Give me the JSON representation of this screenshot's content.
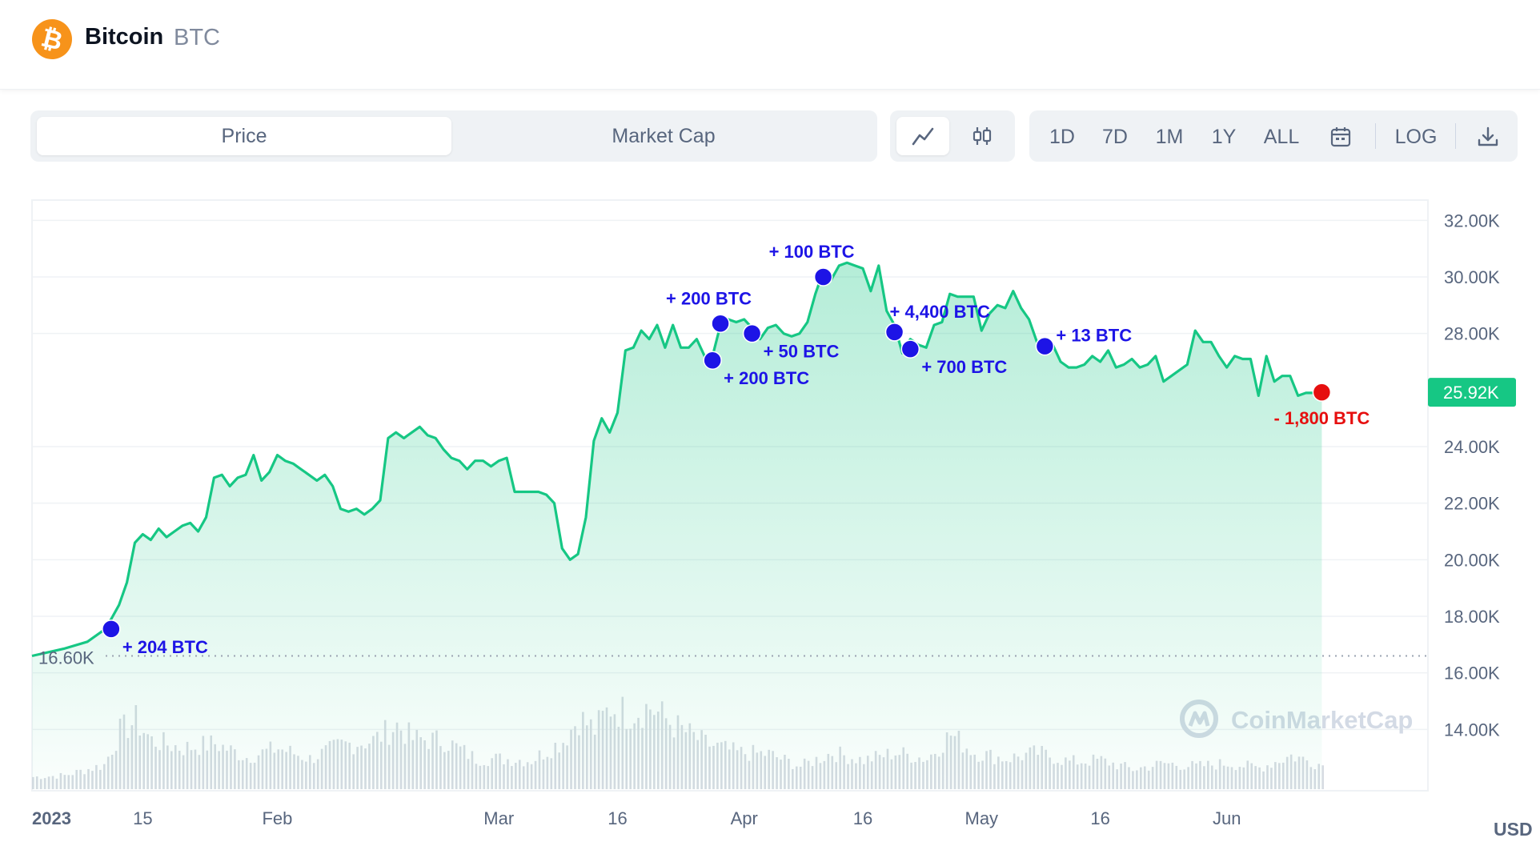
{
  "header": {
    "coin_name": "Bitcoin",
    "coin_symbol": "BTC",
    "logo_glyph": "₿",
    "logo_color": "#f7931a"
  },
  "toolbar": {
    "metric_tabs": [
      {
        "label": "Price",
        "active": true
      },
      {
        "label": "Market Cap",
        "active": false
      }
    ],
    "chart_type_buttons": [
      {
        "icon": "line-chart-icon",
        "active": true
      },
      {
        "icon": "candlestick-icon",
        "active": false
      }
    ],
    "timeframes": [
      "1D",
      "7D",
      "1M",
      "1Y",
      "ALL"
    ],
    "calendar_icon": "calendar-icon",
    "log_label": "LOG",
    "download_icon": "download-icon"
  },
  "chart_data": {
    "type": "area",
    "currency_label": "USD",
    "y_ticks": [
      "32.00K",
      "30.00K",
      "28.00K",
      "24.00K",
      "22.00K",
      "20.00K",
      "18.00K",
      "16.00K",
      "14.00K"
    ],
    "y_tick_values": [
      32000,
      30000,
      28000,
      24000,
      22000,
      20000,
      18000,
      16000,
      14000
    ],
    "ylim": [
      12000,
      33000
    ],
    "x_ticks": [
      {
        "label": "2023",
        "date": "2023-01-01",
        "bold": true
      },
      {
        "label": "15",
        "date": "2023-01-15"
      },
      {
        "label": "Feb",
        "date": "2023-02-01"
      },
      {
        "label": "Mar",
        "date": "2023-03-01"
      },
      {
        "label": "16",
        "date": "2023-03-16"
      },
      {
        "label": "Apr",
        "date": "2023-04-01"
      },
      {
        "label": "16",
        "date": "2023-04-16"
      },
      {
        "label": "May",
        "date": "2023-05-01"
      },
      {
        "label": "16",
        "date": "2023-05-16"
      },
      {
        "label": "Jun",
        "date": "2023-06-01"
      }
    ],
    "xlim": [
      "2023-01-01",
      "2023-06-25"
    ],
    "start_price": {
      "label": "16.60K",
      "value": 16600
    },
    "current_price": {
      "label": "25.92K",
      "value": 25920
    },
    "series": [
      {
        "color": "#16c784",
        "points": [
          [
            "2023-01-01",
            16600
          ],
          [
            "2023-01-05",
            16850
          ],
          [
            "2023-01-08",
            17100
          ],
          [
            "2023-01-10",
            17500
          ],
          [
            "2023-01-11",
            17900
          ],
          [
            "2023-01-12",
            18400
          ],
          [
            "2023-01-13",
            19200
          ],
          [
            "2023-01-14",
            20600
          ],
          [
            "2023-01-15",
            20900
          ],
          [
            "2023-01-16",
            20700
          ],
          [
            "2023-01-17",
            21100
          ],
          [
            "2023-01-18",
            20800
          ],
          [
            "2023-01-19",
            21000
          ],
          [
            "2023-01-20",
            21200
          ],
          [
            "2023-01-21",
            21300
          ],
          [
            "2023-01-22",
            21000
          ],
          [
            "2023-01-23",
            21500
          ],
          [
            "2023-01-24",
            22900
          ],
          [
            "2023-01-25",
            23000
          ],
          [
            "2023-01-26",
            22600
          ],
          [
            "2023-01-27",
            22900
          ],
          [
            "2023-01-28",
            23000
          ],
          [
            "2023-01-29",
            23700
          ],
          [
            "2023-01-30",
            22800
          ],
          [
            "2023-01-31",
            23100
          ],
          [
            "2023-02-01",
            23700
          ],
          [
            "2023-02-02",
            23500
          ],
          [
            "2023-02-03",
            23400
          ],
          [
            "2023-02-04",
            23200
          ],
          [
            "2023-02-05",
            23000
          ],
          [
            "2023-02-06",
            22800
          ],
          [
            "2023-02-07",
            23000
          ],
          [
            "2023-02-08",
            22600
          ],
          [
            "2023-02-09",
            21800
          ],
          [
            "2023-02-10",
            21700
          ],
          [
            "2023-02-11",
            21800
          ],
          [
            "2023-02-12",
            21600
          ],
          [
            "2023-02-13",
            21800
          ],
          [
            "2023-02-14",
            22100
          ],
          [
            "2023-02-15",
            24300
          ],
          [
            "2023-02-16",
            24500
          ],
          [
            "2023-02-17",
            24300
          ],
          [
            "2023-02-18",
            24500
          ],
          [
            "2023-02-19",
            24700
          ],
          [
            "2023-02-20",
            24400
          ],
          [
            "2023-02-21",
            24300
          ],
          [
            "2023-02-22",
            23900
          ],
          [
            "2023-02-23",
            23600
          ],
          [
            "2023-02-24",
            23500
          ],
          [
            "2023-02-25",
            23200
          ],
          [
            "2023-02-26",
            23500
          ],
          [
            "2023-02-27",
            23500
          ],
          [
            "2023-02-28",
            23300
          ],
          [
            "2023-03-01",
            23500
          ],
          [
            "2023-03-02",
            23600
          ],
          [
            "2023-03-03",
            22400
          ],
          [
            "2023-03-04",
            22400
          ],
          [
            "2023-03-05",
            22400
          ],
          [
            "2023-03-06",
            22400
          ],
          [
            "2023-03-07",
            22300
          ],
          [
            "2023-03-08",
            22000
          ],
          [
            "2023-03-09",
            20400
          ],
          [
            "2023-03-10",
            20000
          ],
          [
            "2023-03-11",
            20200
          ],
          [
            "2023-03-12",
            21500
          ],
          [
            "2023-03-13",
            24200
          ],
          [
            "2023-03-14",
            25000
          ],
          [
            "2023-03-15",
            24500
          ],
          [
            "2023-03-16",
            25200
          ],
          [
            "2023-03-17",
            27400
          ],
          [
            "2023-03-18",
            27500
          ],
          [
            "2023-03-19",
            28100
          ],
          [
            "2023-03-20",
            27800
          ],
          [
            "2023-03-21",
            28300
          ],
          [
            "2023-03-22",
            27500
          ],
          [
            "2023-03-23",
            28300
          ],
          [
            "2023-03-24",
            27500
          ],
          [
            "2023-03-25",
            27500
          ],
          [
            "2023-03-26",
            27800
          ],
          [
            "2023-03-27",
            27200
          ],
          [
            "2023-03-28",
            27200
          ],
          [
            "2023-03-29",
            28300
          ],
          [
            "2023-03-30",
            28500
          ],
          [
            "2023-03-31",
            28400
          ],
          [
            "2023-04-01",
            28500
          ],
          [
            "2023-04-02",
            28200
          ],
          [
            "2023-04-03",
            27800
          ],
          [
            "2023-04-04",
            28200
          ],
          [
            "2023-04-05",
            28300
          ],
          [
            "2023-04-06",
            28000
          ],
          [
            "2023-04-07",
            27900
          ],
          [
            "2023-04-08",
            28000
          ],
          [
            "2023-04-09",
            28400
          ],
          [
            "2023-04-10",
            29400
          ],
          [
            "2023-04-11",
            30200
          ],
          [
            "2023-04-12",
            29900
          ],
          [
            "2023-04-13",
            30400
          ],
          [
            "2023-04-14",
            30500
          ],
          [
            "2023-04-15",
            30400
          ],
          [
            "2023-04-16",
            30300
          ],
          [
            "2023-04-17",
            29500
          ],
          [
            "2023-04-18",
            30400
          ],
          [
            "2023-04-19",
            28800
          ],
          [
            "2023-04-20",
            28300
          ],
          [
            "2023-04-21",
            27300
          ],
          [
            "2023-04-22",
            27800
          ],
          [
            "2023-04-23",
            27600
          ],
          [
            "2023-04-24",
            27500
          ],
          [
            "2023-04-25",
            28300
          ],
          [
            "2023-04-26",
            28400
          ],
          [
            "2023-04-27",
            29400
          ],
          [
            "2023-04-28",
            29300
          ],
          [
            "2023-04-29",
            29300
          ],
          [
            "2023-04-30",
            29300
          ],
          [
            "2023-05-01",
            28100
          ],
          [
            "2023-05-02",
            28700
          ],
          [
            "2023-05-03",
            29000
          ],
          [
            "2023-05-04",
            28900
          ],
          [
            "2023-05-05",
            29500
          ],
          [
            "2023-05-06",
            28900
          ],
          [
            "2023-05-07",
            28500
          ],
          [
            "2023-05-08",
            27700
          ],
          [
            "2023-05-09",
            27600
          ],
          [
            "2023-05-10",
            27600
          ],
          [
            "2023-05-11",
            27000
          ],
          [
            "2023-05-12",
            26800
          ],
          [
            "2023-05-13",
            26800
          ],
          [
            "2023-05-14",
            26900
          ],
          [
            "2023-05-15",
            27200
          ],
          [
            "2023-05-16",
            27000
          ],
          [
            "2023-05-17",
            27400
          ],
          [
            "2023-05-18",
            26800
          ],
          [
            "2023-05-19",
            26900
          ],
          [
            "2023-05-20",
            27100
          ],
          [
            "2023-05-21",
            26800
          ],
          [
            "2023-05-22",
            26900
          ],
          [
            "2023-05-23",
            27200
          ],
          [
            "2023-05-24",
            26300
          ],
          [
            "2023-05-25",
            26500
          ],
          [
            "2023-05-26",
            26700
          ],
          [
            "2023-05-27",
            26900
          ],
          [
            "2023-05-28",
            28100
          ],
          [
            "2023-05-29",
            27700
          ],
          [
            "2023-05-30",
            27700
          ],
          [
            "2023-05-31",
            27200
          ],
          [
            "2023-06-01",
            26800
          ],
          [
            "2023-06-02",
            27200
          ],
          [
            "2023-06-03",
            27100
          ],
          [
            "2023-06-04",
            27100
          ],
          [
            "2023-06-05",
            25800
          ],
          [
            "2023-06-06",
            27200
          ],
          [
            "2023-06-07",
            26300
          ],
          [
            "2023-06-08",
            26500
          ],
          [
            "2023-06-09",
            26500
          ],
          [
            "2023-06-10",
            25800
          ],
          [
            "2023-06-11",
            25900
          ],
          [
            "2023-06-12",
            25900
          ],
          [
            "2023-06-13",
            25920
          ]
        ]
      }
    ],
    "volume": [
      [
        "2023-01-01",
        8
      ],
      [
        "2023-01-05",
        9
      ],
      [
        "2023-01-10",
        16
      ],
      [
        "2023-01-12",
        38
      ],
      [
        "2023-01-14",
        45
      ],
      [
        "2023-01-16",
        32
      ],
      [
        "2023-01-20",
        27
      ],
      [
        "2023-01-24",
        30
      ],
      [
        "2023-01-28",
        21
      ],
      [
        "2023-02-01",
        27
      ],
      [
        "2023-02-05",
        20
      ],
      [
        "2023-02-09",
        29
      ],
      [
        "2023-02-13",
        32
      ],
      [
        "2023-02-16",
        42
      ],
      [
        "2023-02-18",
        33
      ],
      [
        "2023-02-22",
        32
      ],
      [
        "2023-02-26",
        20
      ],
      [
        "2023-03-01",
        20
      ],
      [
        "2023-03-05",
        19
      ],
      [
        "2023-03-09",
        32
      ],
      [
        "2023-03-11",
        47
      ],
      [
        "2023-03-13",
        39
      ],
      [
        "2023-03-15",
        54
      ],
      [
        "2023-03-17",
        50
      ],
      [
        "2023-03-20",
        54
      ],
      [
        "2023-03-23",
        42
      ],
      [
        "2023-03-27",
        30
      ],
      [
        "2023-03-31",
        24
      ],
      [
        "2023-04-04",
        23
      ],
      [
        "2023-04-08",
        15
      ],
      [
        "2023-04-12",
        24
      ],
      [
        "2023-04-16",
        19
      ],
      [
        "2023-04-20",
        24
      ],
      [
        "2023-04-24",
        20
      ],
      [
        "2023-04-27",
        36
      ],
      [
        "2023-04-30",
        24
      ],
      [
        "2023-05-04",
        20
      ],
      [
        "2023-05-08",
        24
      ],
      [
        "2023-05-12",
        18
      ],
      [
        "2023-05-16",
        19
      ],
      [
        "2023-05-20",
        13
      ],
      [
        "2023-05-24",
        17
      ],
      [
        "2023-05-28",
        15
      ],
      [
        "2023-06-01",
        17
      ],
      [
        "2023-06-05",
        14
      ],
      [
        "2023-06-09",
        22
      ],
      [
        "2023-06-13",
        16
      ]
    ],
    "annotations": [
      {
        "date": "2023-01-11",
        "value": 17550,
        "label": "+ 204 BTC",
        "type": "buy",
        "label_pos": "below-right"
      },
      {
        "date": "2023-03-28",
        "value": 27050,
        "label": "+ 200 BTC",
        "type": "buy",
        "label_pos": "below-right"
      },
      {
        "date": "2023-03-29",
        "value": 28350,
        "label": "+ 200 BTC",
        "type": "buy",
        "label_pos": "above-left"
      },
      {
        "date": "2023-04-02",
        "value": 28000,
        "label": "+ 50 BTC",
        "type": "buy",
        "label_pos": "below-right"
      },
      {
        "date": "2023-04-11",
        "value": 30000,
        "label": "+ 100 BTC",
        "type": "buy",
        "label_pos": "above-left"
      },
      {
        "date": "2023-04-20",
        "value": 28050,
        "label": "+ 4,400 BTC",
        "type": "buy",
        "label_pos": "above-right"
      },
      {
        "date": "2023-04-22",
        "value": 27450,
        "label": "+ 700 BTC",
        "type": "buy",
        "label_pos": "below-right"
      },
      {
        "date": "2023-05-09",
        "value": 27550,
        "label": "+ 13 BTC",
        "type": "buy",
        "label_pos": "right"
      },
      {
        "date": "2023-06-13",
        "value": 25920,
        "label": "- 1,800 BTC",
        "type": "sell",
        "label_pos": "below"
      }
    ],
    "watermark": "CoinMarketCap",
    "grid": true,
    "colors": {
      "line": "#16c784",
      "buy": "#1d14e6",
      "sell": "#e60f0f",
      "grid": "#eff2f5",
      "axis_text": "#58667e"
    }
  }
}
